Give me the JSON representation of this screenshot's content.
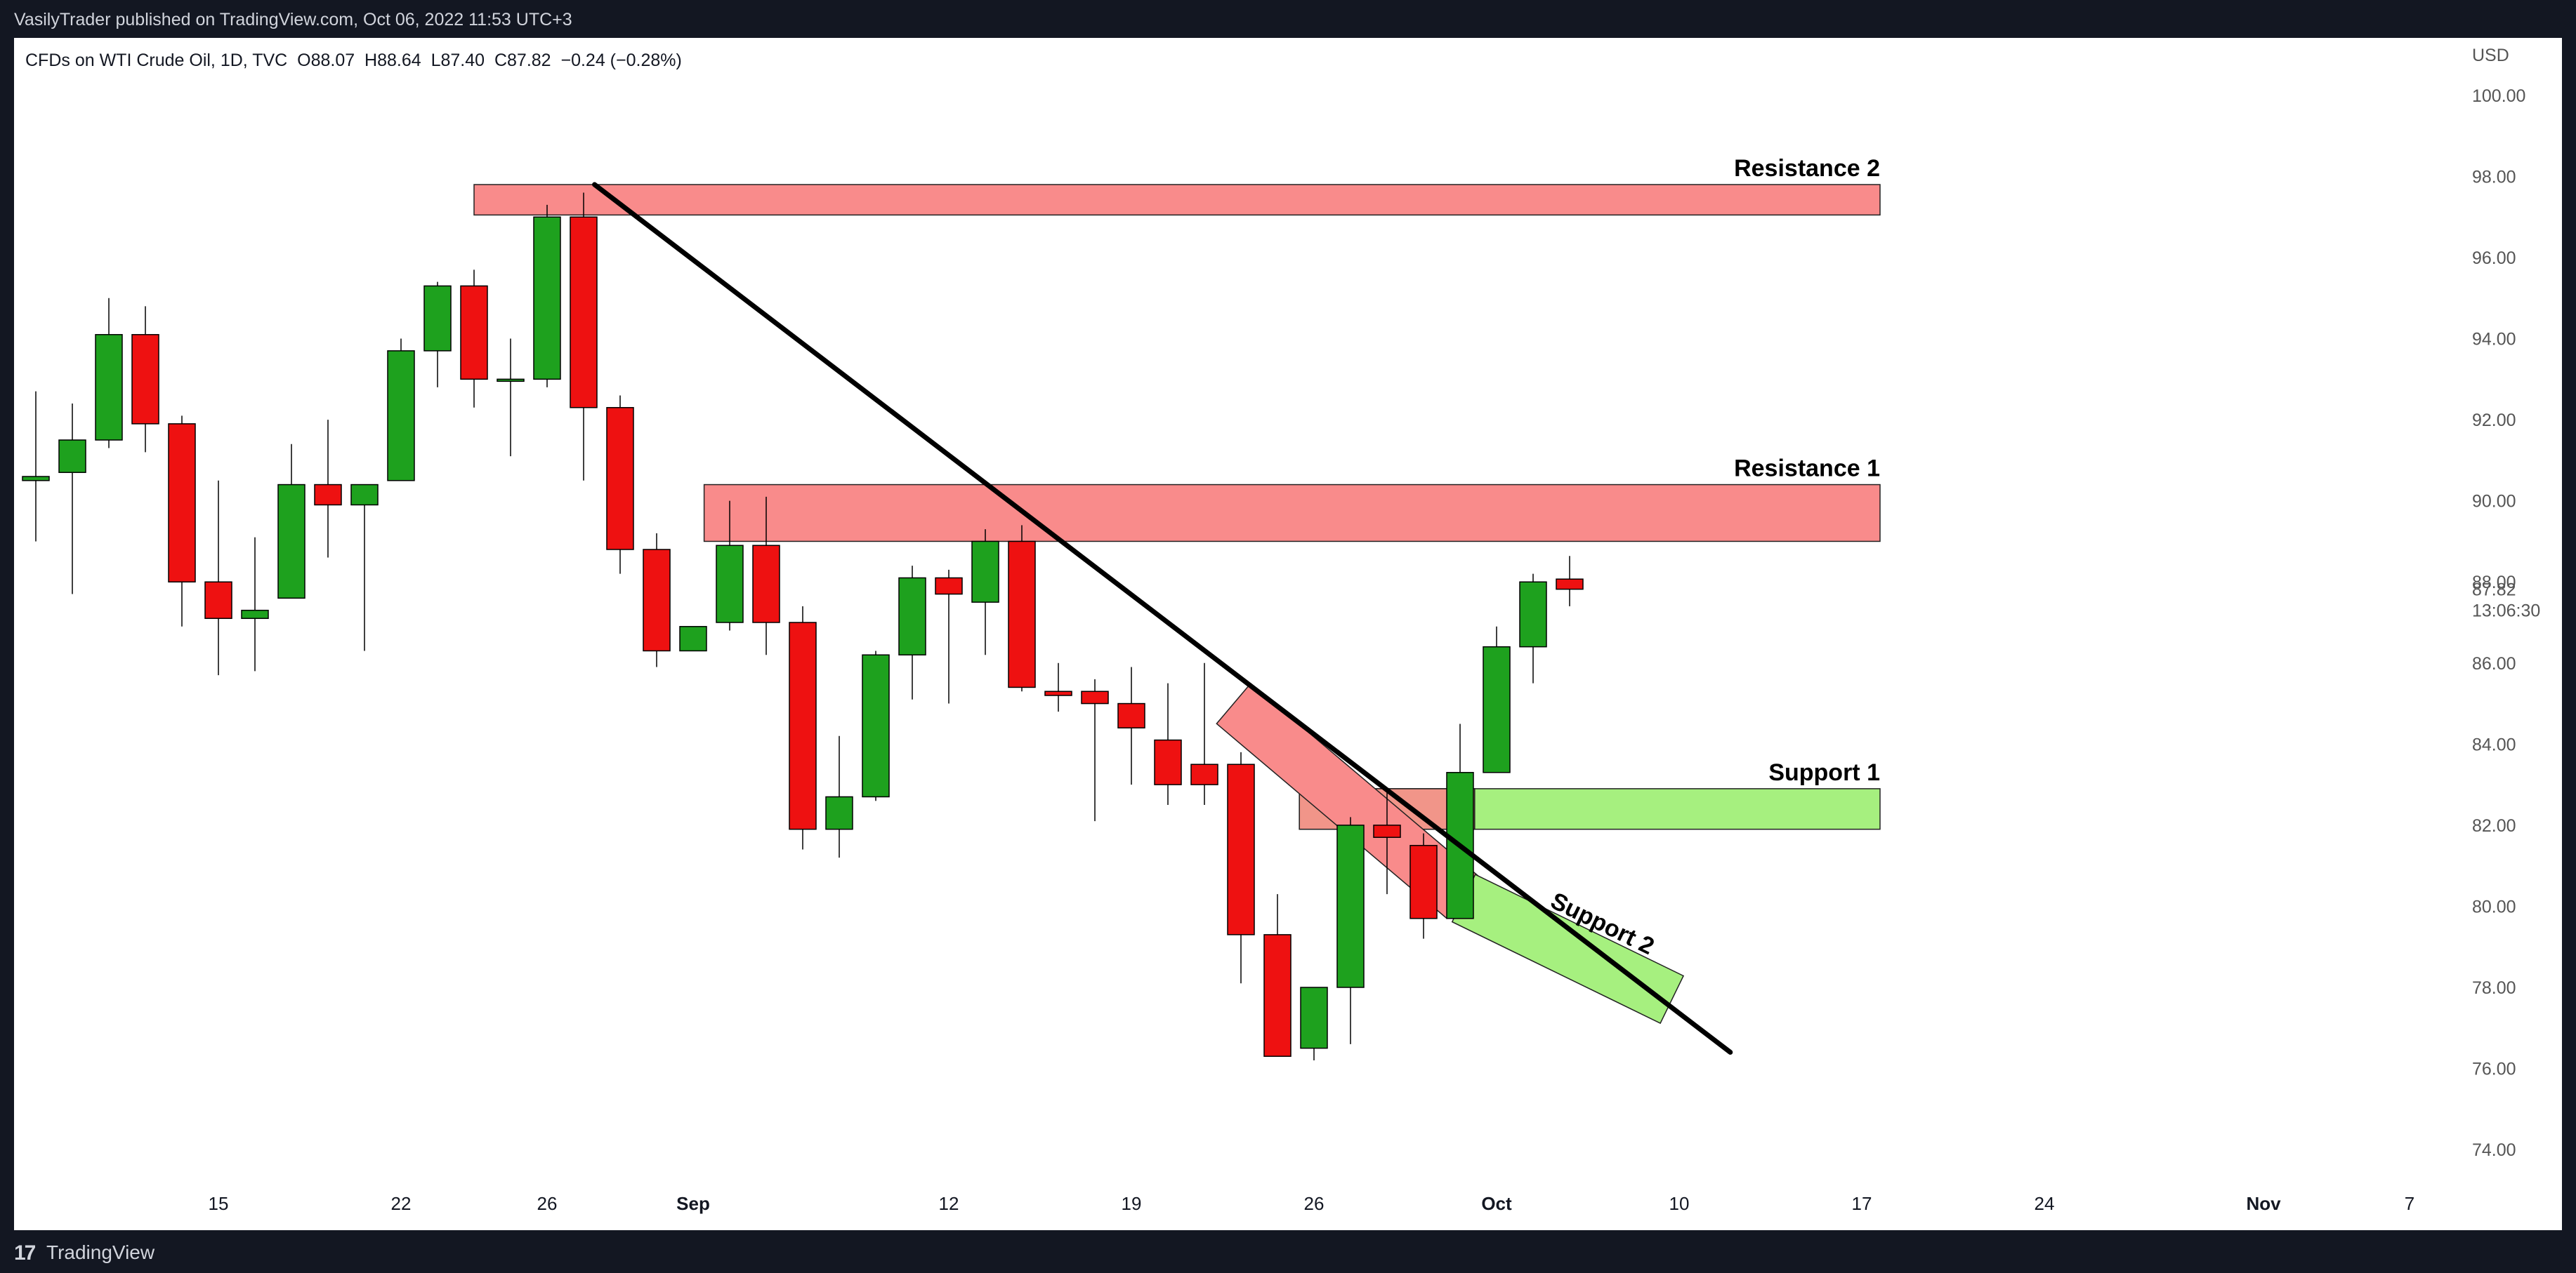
{
  "header": {
    "publisher_line": "VasilyTrader published on TradingView.com, Oct 06, 2022 11:53 UTC+3"
  },
  "legend": {
    "symbol": "CFDs on WTI Crude Oil, 1D, TVC",
    "open": "O88.07",
    "high": "H88.64",
    "low": "L87.40",
    "close": "C87.82",
    "change": "−0.24 (−0.28%)"
  },
  "footer": {
    "logo_glyph": "17",
    "brand": "TradingView"
  },
  "colors": {
    "up": "#1ea11e",
    "down": "#ee1111",
    "resistance_fill": "#f98b8b",
    "support_fill": "#a6f07f",
    "trendline": "#000000"
  },
  "chart_data": {
    "type": "candlestick",
    "currency": "USD",
    "ylim": [
      73.5,
      100.5
    ],
    "y_ticks": [
      "74.00",
      "76.00",
      "78.00",
      "80.00",
      "82.00",
      "84.00",
      "86.00",
      "88.00",
      "90.00",
      "92.00",
      "94.00",
      "96.00",
      "98.00",
      "100.00"
    ],
    "last_price": "87.82",
    "countdown": "13:06:30",
    "x_labels": [
      {
        "label": "15",
        "i": 5,
        "bold": false
      },
      {
        "label": "22",
        "i": 10,
        "bold": false
      },
      {
        "label": "26",
        "i": 14,
        "bold": false
      },
      {
        "label": "Sep",
        "i": 18,
        "bold": true
      },
      {
        "label": "12",
        "i": 25,
        "bold": false
      },
      {
        "label": "19",
        "i": 30,
        "bold": false
      },
      {
        "label": "26",
        "i": 35,
        "bold": false
      },
      {
        "label": "Oct",
        "i": 40,
        "bold": true
      },
      {
        "label": "10",
        "i": 45,
        "bold": false
      },
      {
        "label": "17",
        "i": 50,
        "bold": false
      },
      {
        "label": "24",
        "i": 55,
        "bold": false
      },
      {
        "label": "Nov",
        "i": 61,
        "bold": true
      },
      {
        "label": "7",
        "i": 65,
        "bold": false
      }
    ],
    "candles": [
      {
        "d": "Aug 08",
        "o": 90.5,
        "h": 92.7,
        "l": 89.0,
        "c": 90.6
      },
      {
        "d": "Aug 09",
        "o": 90.7,
        "h": 92.4,
        "l": 87.7,
        "c": 91.5
      },
      {
        "d": "Aug 10",
        "o": 91.5,
        "h": 95.0,
        "l": 91.3,
        "c": 94.1
      },
      {
        "d": "Aug 11",
        "o": 94.1,
        "h": 94.8,
        "l": 91.2,
        "c": 91.9
      },
      {
        "d": "Aug 12",
        "o": 91.9,
        "h": 92.1,
        "l": 86.9,
        "c": 88.0
      },
      {
        "d": "Aug 15",
        "o": 88.0,
        "h": 90.5,
        "l": 85.7,
        "c": 87.1
      },
      {
        "d": "Aug 16",
        "o": 87.1,
        "h": 89.1,
        "l": 85.8,
        "c": 87.3
      },
      {
        "d": "Aug 17",
        "o": 87.6,
        "h": 91.4,
        "l": 87.6,
        "c": 90.4
      },
      {
        "d": "Aug 18",
        "o": 90.4,
        "h": 92.0,
        "l": 88.6,
        "c": 89.9
      },
      {
        "d": "Aug 19",
        "o": 89.9,
        "h": 90.4,
        "l": 86.3,
        "c": 90.4
      },
      {
        "d": "Aug 22",
        "o": 90.5,
        "h": 94.0,
        "l": 90.5,
        "c": 93.7
      },
      {
        "d": "Aug 23",
        "o": 93.7,
        "h": 95.4,
        "l": 92.8,
        "c": 95.3
      },
      {
        "d": "Aug 24",
        "o": 95.3,
        "h": 95.7,
        "l": 92.3,
        "c": 93.0
      },
      {
        "d": "Aug 25",
        "o": 93.0,
        "h": 94.0,
        "l": 91.1,
        "c": 93.0
      },
      {
        "d": "Aug 26",
        "o": 93.0,
        "h": 97.3,
        "l": 92.8,
        "c": 97.0
      },
      {
        "d": "Aug 29",
        "o": 97.0,
        "h": 97.6,
        "l": 90.5,
        "c": 92.3
      },
      {
        "d": "Aug 30",
        "o": 92.3,
        "h": 92.6,
        "l": 88.2,
        "c": 88.8
      },
      {
        "d": "Aug 31",
        "o": 88.8,
        "h": 89.2,
        "l": 85.9,
        "c": 86.3
      },
      {
        "d": "Sep 01",
        "o": 86.3,
        "h": 86.9,
        "l": 86.3,
        "c": 86.9
      },
      {
        "d": "Sep 02",
        "o": 87.0,
        "h": 90.0,
        "l": 86.8,
        "c": 88.9
      },
      {
        "d": "Sep 05",
        "o": 88.9,
        "h": 90.1,
        "l": 86.2,
        "c": 87.0
      },
      {
        "d": "Sep 06",
        "o": 87.0,
        "h": 87.4,
        "l": 81.4,
        "c": 81.9
      },
      {
        "d": "Sep 07",
        "o": 81.9,
        "h": 84.2,
        "l": 81.2,
        "c": 82.7
      },
      {
        "d": "Sep 08",
        "o": 82.7,
        "h": 86.3,
        "l": 82.6,
        "c": 86.2
      },
      {
        "d": "Sep 09",
        "o": 86.2,
        "h": 88.4,
        "l": 85.1,
        "c": 88.1
      },
      {
        "d": "Sep 12",
        "o": 88.1,
        "h": 88.3,
        "l": 85.0,
        "c": 87.7
      },
      {
        "d": "Sep 13",
        "o": 87.5,
        "h": 89.3,
        "l": 86.2,
        "c": 89.0
      },
      {
        "d": "Sep 14",
        "o": 89.0,
        "h": 89.4,
        "l": 85.3,
        "c": 85.4
      },
      {
        "d": "Sep 15",
        "o": 85.3,
        "h": 86.0,
        "l": 84.8,
        "c": 85.2
      },
      {
        "d": "Sep 16",
        "o": 85.3,
        "h": 85.6,
        "l": 82.1,
        "c": 85.0
      },
      {
        "d": "Sep 19",
        "o": 85.0,
        "h": 85.9,
        "l": 83.0,
        "c": 84.4
      },
      {
        "d": "Sep 20",
        "o": 84.1,
        "h": 85.5,
        "l": 82.5,
        "c": 83.0
      },
      {
        "d": "Sep 21",
        "o": 83.5,
        "h": 86.0,
        "l": 82.5,
        "c": 83.0
      },
      {
        "d": "Sep 22",
        "o": 83.5,
        "h": 83.8,
        "l": 78.1,
        "c": 79.3
      },
      {
        "d": "Sep 23",
        "o": 79.3,
        "h": 80.3,
        "l": 76.3,
        "c": 76.3
      },
      {
        "d": "Sep 26",
        "o": 76.5,
        "h": 78.0,
        "l": 76.2,
        "c": 78.0
      },
      {
        "d": "Sep 27",
        "o": 78.0,
        "h": 82.2,
        "l": 76.6,
        "c": 82.0
      },
      {
        "d": "Sep 28",
        "o": 82.0,
        "h": 82.9,
        "l": 80.3,
        "c": 81.7
      },
      {
        "d": "Sep 29",
        "o": 81.5,
        "h": 81.8,
        "l": 79.2,
        "c": 79.7
      },
      {
        "d": "Sep 30",
        "o": 79.7,
        "h": 84.5,
        "l": 79.7,
        "c": 83.3
      },
      {
        "d": "Oct 03",
        "o": 83.3,
        "h": 86.9,
        "l": 83.3,
        "c": 86.4
      },
      {
        "d": "Oct 04",
        "o": 86.4,
        "h": 88.2,
        "l": 85.5,
        "c": 88.0
      },
      {
        "d": "Oct 05",
        "o": 88.07,
        "h": 88.64,
        "l": 87.4,
        "c": 87.82
      }
    ],
    "zones": [
      {
        "label": "Resistance 2",
        "kind": "resistance",
        "i_from": 12,
        "i_to": 50.5,
        "price_top": 97.8,
        "price_bottom": 97.05
      },
      {
        "label": "Resistance 1",
        "kind": "resistance",
        "i_from": 18.3,
        "i_to": 50.5,
        "price_top": 90.4,
        "price_bottom": 89.0
      },
      {
        "label": "Support 1",
        "kind": "support",
        "i_from": 34.6,
        "i_to": 50.5,
        "price_top": 82.9,
        "price_bottom": 81.9
      },
      {
        "label": "",
        "kind": "resistance",
        "i_from": 34.6,
        "i_to": 39.4,
        "price_top": 82.9,
        "price_bottom": 81.9
      }
    ],
    "channel": {
      "label": "Support 2",
      "red_segment": {
        "i1": 32.8,
        "p1": 85.0,
        "i2": 39.1,
        "p2": 80.2
      },
      "green_segment": {
        "i1": 39.1,
        "p1": 80.2,
        "i2": 44.8,
        "p2": 77.7
      },
      "half_width_price": 0.65
    },
    "trendline": {
      "i1": 15.3,
      "p1": 97.8,
      "i2": 46.4,
      "p2": 76.4
    }
  }
}
